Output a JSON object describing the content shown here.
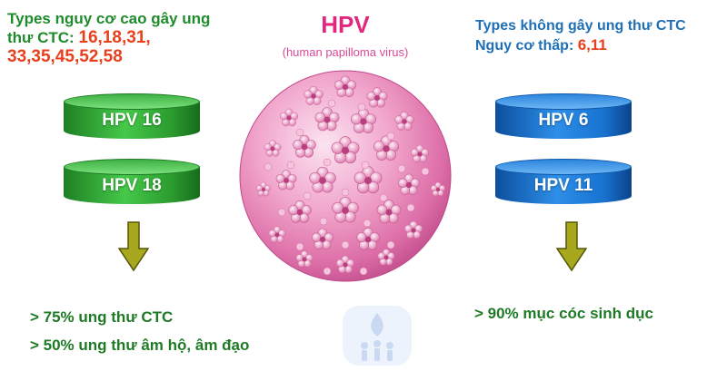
{
  "colors": {
    "green_text": "#1f8b2c",
    "blue_text": "#1f6fb6",
    "red_text": "#e8401c",
    "pink_title": "#e2287e",
    "arrow_fill": "#a8a81e"
  },
  "header": {
    "title": "HPV",
    "subtitle": "(human papilloma virus)"
  },
  "high_risk": {
    "heading": "Types nguy cơ cao gây ung thư CTC:",
    "types_line1": "16,18,31,",
    "types_line2": "33,35,45,52,58",
    "drums": [
      "HPV 16",
      "HPV 18"
    ],
    "outcomes": [
      "> 75% ung thư CTC",
      "> 50% ung thư âm hộ, âm đạo"
    ]
  },
  "low_risk": {
    "heading": "Types không gây ung thư CTC",
    "subheading": "Nguy cơ thấp:",
    "types": "6,11",
    "drums": [
      "HPV 6",
      "HPV 11"
    ],
    "outcomes": [
      "> 90% mục cóc sinh dục"
    ]
  },
  "icons": {
    "virus": "virus-sphere-icon",
    "arrow": "arrow-down-icon",
    "watermark": "family-logo-icon"
  }
}
